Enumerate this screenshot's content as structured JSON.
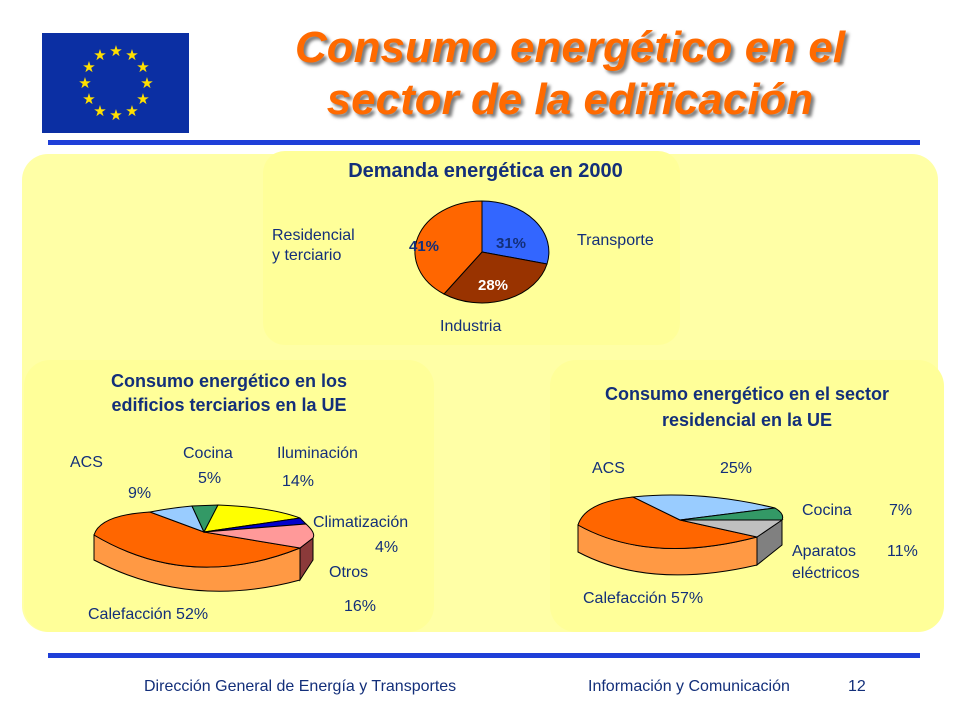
{
  "header": {
    "title_line1": "Consumo energético en el",
    "title_line2": "sector de la edificación"
  },
  "demand_panel": {
    "title": "Demanda energética en 2000",
    "chart_data": {
      "type": "pie",
      "labels": [
        "Transporte",
        "Industria",
        "Residencial y terciario"
      ],
      "values": [
        31,
        28,
        41
      ],
      "value_labels": [
        "31%",
        "28%",
        "41%"
      ],
      "colors": [
        "#3366ff",
        "#993300",
        "#ff6600"
      ]
    },
    "label_transporte": "Transporte",
    "label_industria": "Industria",
    "label_residencial_1": "Residencial",
    "label_residencial_2": "y terciario"
  },
  "tertiary_panel": {
    "title_line1": "Consumo energético en los",
    "title_line2": "edificios terciarios en la UE",
    "chart_data": {
      "type": "pie",
      "labels": [
        "ACS",
        "Cocina",
        "Iluminación",
        "Climatización",
        "Otros",
        "Calefacción"
      ],
      "values": [
        9,
        5,
        14,
        4,
        16,
        52
      ],
      "colors": [
        "#99ccff",
        "#339966",
        "#ffff00",
        "#0000cc",
        "#ff9999",
        "#ff6600"
      ]
    },
    "lbl_acs": "ACS",
    "pct_acs": "9%",
    "lbl_cocina": "Cocina",
    "pct_cocina": "5%",
    "lbl_ilum": "Iluminación",
    "pct_ilum": "14%",
    "lbl_clim": "Climatización",
    "pct_clim": "4%",
    "lbl_otros": "Otros",
    "pct_otros": "16%",
    "lbl_calef": "Calefacción 52%"
  },
  "residential_panel": {
    "title_line1": "Consumo energético en el sector",
    "title_line2": "residencial en la UE",
    "chart_data": {
      "type": "pie",
      "labels": [
        "ACS",
        "Cocina",
        "Aparatos eléctricos",
        "Calefacción"
      ],
      "values": [
        25,
        7,
        11,
        57
      ],
      "colors": [
        "#99ccff",
        "#339966",
        "#c0c0c0",
        "#ff6600"
      ]
    },
    "lbl_acs": "ACS",
    "pct_acs": "25%",
    "lbl_cocina": "Cocina",
    "pct_cocina": "7%",
    "lbl_aparatos_1": "Aparatos",
    "lbl_aparatos_2": "eléctricos",
    "pct_aparatos": "11%",
    "lbl_calef": "Calefacción 57%"
  },
  "footer": {
    "left": "Dirección General de Energía y Transportes",
    "right": "Información y Comunicación",
    "page": "12"
  }
}
